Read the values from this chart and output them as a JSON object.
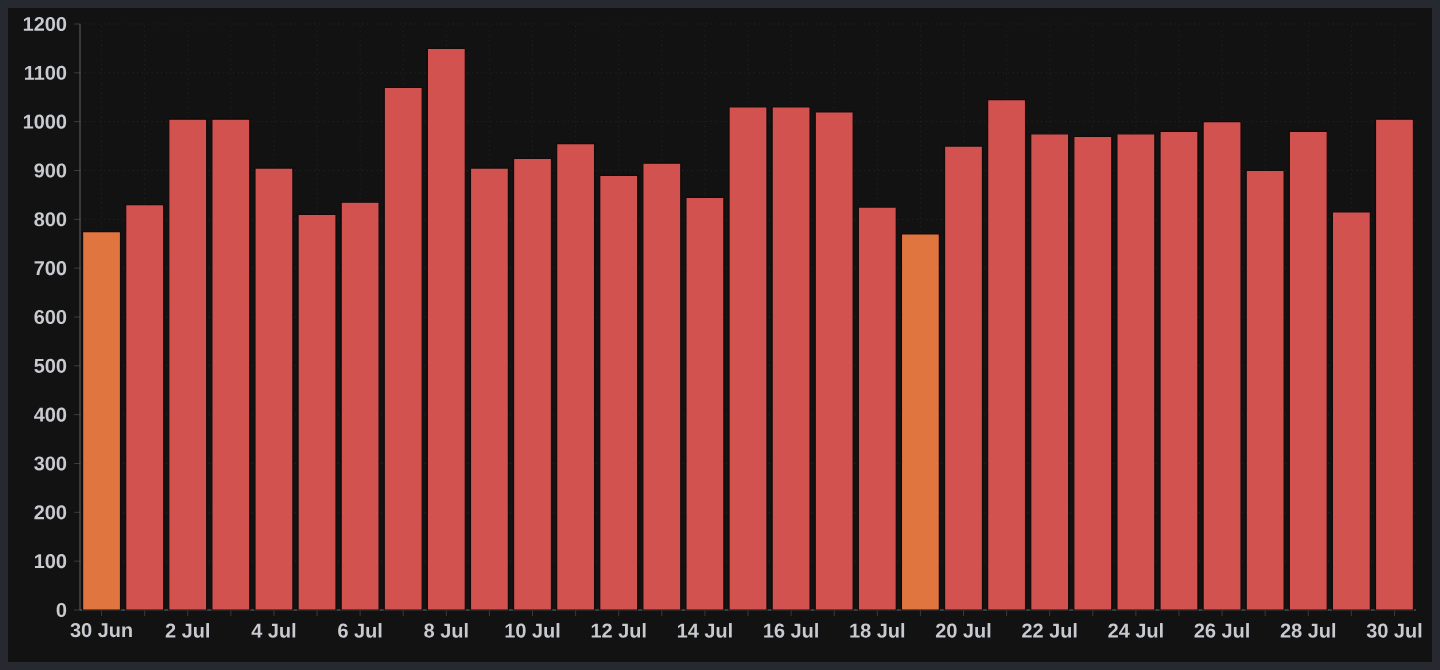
{
  "chart_data": {
    "type": "bar",
    "categories": [
      "30 Jun",
      null,
      "2 Jul",
      null,
      "4 Jul",
      null,
      "6 Jul",
      null,
      "8 Jul",
      null,
      "10 Jul",
      null,
      "12 Jul",
      null,
      "14 Jul",
      null,
      "16 Jul",
      null,
      "18 Jul",
      null,
      "20 Jul",
      null,
      "22 Jul",
      null,
      "24 Jul",
      null,
      "26 Jul",
      null,
      "28 Jul",
      null,
      "30 Jul"
    ],
    "values": [
      775,
      830,
      1005,
      1005,
      905,
      810,
      835,
      1070,
      1150,
      905,
      925,
      955,
      890,
      915,
      845,
      1030,
      1030,
      1020,
      825,
      770,
      950,
      1045,
      975,
      970,
      975,
      980,
      1000,
      900,
      980,
      815,
      1005
    ],
    "colors": [
      "#e07540",
      "#d25250",
      "#d25250",
      "#d25250",
      "#d25250",
      "#d25250",
      "#d25250",
      "#d25250",
      "#d25250",
      "#d25250",
      "#d25250",
      "#d25250",
      "#d25250",
      "#d25250",
      "#d25250",
      "#d25250",
      "#d25250",
      "#d25250",
      "#d25250",
      "#e07540",
      "#d25250",
      "#d25250",
      "#d25250",
      "#d25250",
      "#d25250",
      "#d25250",
      "#d25250",
      "#d25250",
      "#d25250",
      "#d25250",
      "#d25250"
    ],
    "ylim": [
      0,
      1200
    ],
    "yticks": [
      0,
      100,
      200,
      300,
      400,
      500,
      600,
      700,
      800,
      900,
      1000,
      1100,
      1200
    ],
    "grid": true
  }
}
